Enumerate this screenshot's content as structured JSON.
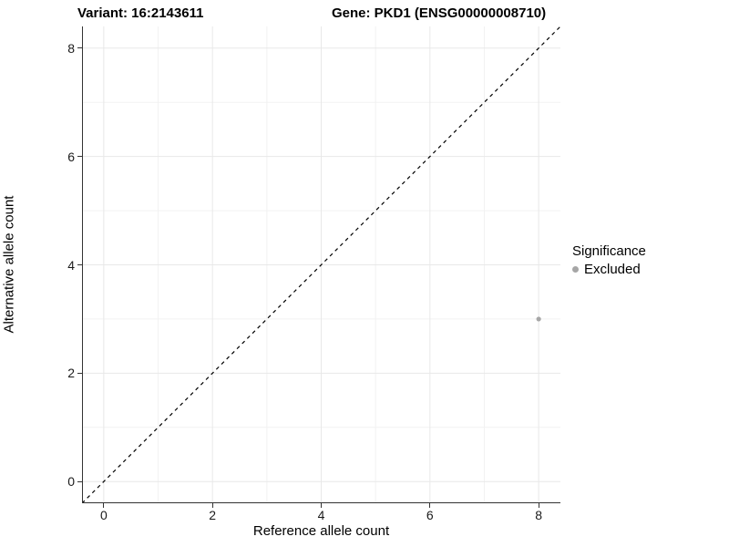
{
  "titles": {
    "variant": "Variant: 16:2143611",
    "gene": "Gene: PKD1 (ENSG00000008710)"
  },
  "chart_data": {
    "type": "scatter",
    "xlabel": "Reference allele count",
    "ylabel": "Alternative allele count",
    "xlim": [
      -0.4,
      8.4
    ],
    "ylim": [
      -0.4,
      8.4
    ],
    "x_major_ticks": [
      0,
      2,
      4,
      6,
      8
    ],
    "y_major_ticks": [
      0,
      2,
      4,
      6,
      8
    ],
    "x_minor_ticks": [
      1,
      3,
      5,
      7
    ],
    "y_minor_ticks": [
      1,
      3,
      5,
      7
    ],
    "grid": true,
    "points": [
      {
        "x": 8,
        "y": 3,
        "series": "Excluded"
      }
    ],
    "reference_line": {
      "style": "dashed",
      "from": {
        "x": -0.4,
        "y": -0.4
      },
      "to": {
        "x": 8.4,
        "y": 8.4
      }
    },
    "legend": {
      "title": "Significance",
      "position": "right",
      "entries": [
        {
          "label": "Excluded",
          "color": "#a6a6a6"
        }
      ]
    },
    "colors": {
      "point": "#a6a6a6",
      "grid_major": "#e8e8e8",
      "grid_minor": "#f2f2f2",
      "axis_line": "#333333",
      "reference_line": "#000000",
      "tick_label": "#1a1a1a"
    }
  }
}
